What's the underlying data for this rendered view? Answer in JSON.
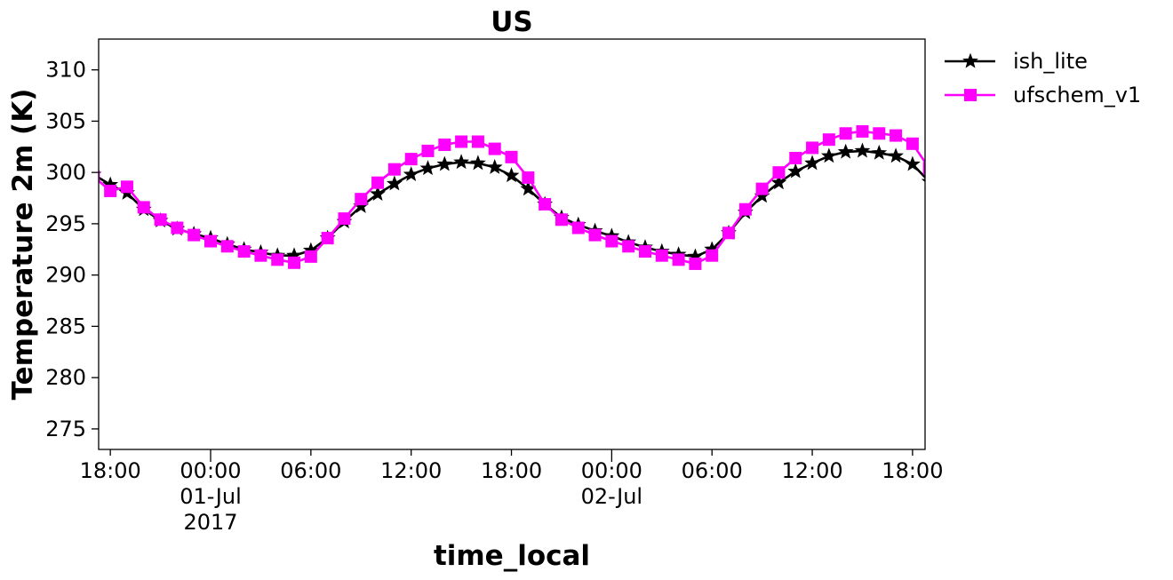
{
  "chart_data": {
    "type": "line",
    "title": "US",
    "xlabel": "time_local",
    "ylabel": "Temperature 2m (K)",
    "ylim": [
      273,
      313
    ],
    "xlim": [
      "2017-06-30 17:18",
      "2017-07-02 18:45"
    ],
    "yticks": [
      275,
      280,
      285,
      290,
      295,
      300,
      305,
      310
    ],
    "xticks": [
      {
        "t": "2017-06-30 18:00",
        "lines": [
          "18:00"
        ],
        "major": false
      },
      {
        "t": "2017-07-01 00:00",
        "lines": [
          "00:00",
          "01-Jul",
          "2017"
        ],
        "major": true
      },
      {
        "t": "2017-07-01 06:00",
        "lines": [
          "06:00"
        ],
        "major": false
      },
      {
        "t": "2017-07-01 12:00",
        "lines": [
          "12:00"
        ],
        "major": false
      },
      {
        "t": "2017-07-01 18:00",
        "lines": [
          "18:00"
        ],
        "major": false
      },
      {
        "t": "2017-07-02 00:00",
        "lines": [
          "00:00",
          "02-Jul"
        ],
        "major": true
      },
      {
        "t": "2017-07-02 06:00",
        "lines": [
          "06:00"
        ],
        "major": false
      },
      {
        "t": "2017-07-02 12:00",
        "lines": [
          "12:00"
        ],
        "major": false
      },
      {
        "t": "2017-07-02 18:00",
        "lines": [
          "18:00"
        ],
        "major": false
      }
    ],
    "grid": false,
    "legend_position": "outside-top-right",
    "x": [
      "2017-06-30 17:00",
      "2017-06-30 18:00",
      "2017-06-30 19:00",
      "2017-06-30 20:00",
      "2017-06-30 21:00",
      "2017-06-30 22:00",
      "2017-06-30 23:00",
      "2017-07-01 00:00",
      "2017-07-01 01:00",
      "2017-07-01 02:00",
      "2017-07-01 03:00",
      "2017-07-01 04:00",
      "2017-07-01 05:00",
      "2017-07-01 06:00",
      "2017-07-01 07:00",
      "2017-07-01 08:00",
      "2017-07-01 09:00",
      "2017-07-01 10:00",
      "2017-07-01 11:00",
      "2017-07-01 12:00",
      "2017-07-01 13:00",
      "2017-07-01 14:00",
      "2017-07-01 15:00",
      "2017-07-01 16:00",
      "2017-07-01 17:00",
      "2017-07-01 18:00",
      "2017-07-01 19:00",
      "2017-07-01 20:00",
      "2017-07-01 21:00",
      "2017-07-01 22:00",
      "2017-07-01 23:00",
      "2017-07-02 00:00",
      "2017-07-02 01:00",
      "2017-07-02 02:00",
      "2017-07-02 03:00",
      "2017-07-02 04:00",
      "2017-07-02 05:00",
      "2017-07-02 06:00",
      "2017-07-02 07:00",
      "2017-07-02 08:00",
      "2017-07-02 09:00",
      "2017-07-02 10:00",
      "2017-07-02 11:00",
      "2017-07-02 12:00",
      "2017-07-02 13:00",
      "2017-07-02 14:00",
      "2017-07-02 15:00",
      "2017-07-02 16:00",
      "2017-07-02 17:00",
      "2017-07-02 18:00",
      "2017-07-02 19:00"
    ],
    "series": [
      {
        "name": "ish_lite",
        "color": "#000000",
        "marker": "star",
        "values": [
          299.8,
          298.8,
          298.0,
          296.4,
          295.3,
          294.5,
          294.0,
          293.6,
          293.0,
          292.5,
          292.2,
          291.9,
          291.9,
          292.4,
          293.6,
          295.2,
          296.7,
          297.9,
          298.9,
          299.8,
          300.4,
          300.8,
          301.0,
          300.9,
          300.5,
          299.7,
          298.4,
          296.9,
          295.6,
          294.9,
          294.3,
          293.8,
          293.2,
          292.7,
          292.3,
          292.0,
          291.8,
          292.5,
          294.1,
          296.1,
          297.7,
          299.0,
          300.1,
          300.9,
          301.6,
          302.0,
          302.1,
          301.9,
          301.6,
          300.8,
          299.1
        ]
      },
      {
        "name": "ufschem_v1",
        "color": "#ff00ff",
        "marker": "square",
        "values": [
          299.6,
          298.2,
          298.6,
          296.6,
          295.4,
          294.6,
          293.9,
          293.3,
          292.8,
          292.3,
          291.9,
          291.5,
          291.2,
          291.8,
          293.6,
          295.5,
          297.4,
          299.0,
          300.3,
          301.3,
          302.1,
          302.7,
          303.0,
          303.0,
          302.3,
          301.5,
          299.5,
          296.9,
          295.4,
          294.6,
          293.9,
          293.3,
          292.8,
          292.3,
          291.9,
          291.5,
          291.1,
          291.9,
          294.1,
          296.4,
          298.4,
          300.0,
          301.4,
          302.4,
          303.2,
          303.8,
          304.0,
          303.8,
          303.6,
          302.8,
          300.4
        ]
      }
    ]
  }
}
